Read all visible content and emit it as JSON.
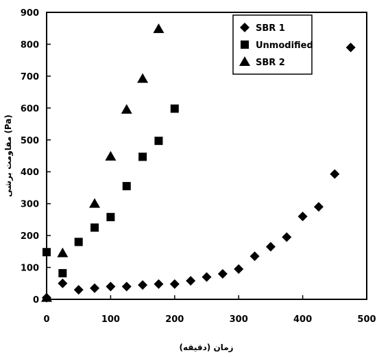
{
  "chart_data": {
    "type": "scatter",
    "xlabel": "زمان (دقیقه)",
    "ylabel": "مقاومت برشی (Pa)",
    "xlim": [
      0,
      500
    ],
    "ylim": [
      0,
      900
    ],
    "xticks": [
      "0",
      "100",
      "200",
      "300",
      "400",
      "500"
    ],
    "yticks": [
      "0",
      "100",
      "200",
      "300",
      "400",
      "500",
      "600",
      "700",
      "800",
      "900"
    ],
    "grid": false,
    "legend_position": "top-right",
    "series": [
      {
        "name": "SBR 1",
        "marker": "diamond",
        "x": [
          0,
          25,
          50,
          75,
          100,
          125,
          150,
          175,
          200,
          225,
          250,
          275,
          300,
          325,
          350,
          375,
          400,
          425,
          450,
          475
        ],
        "y": [
          5,
          50,
          30,
          35,
          40,
          40,
          45,
          48,
          48,
          58,
          70,
          80,
          95,
          135,
          165,
          195,
          260,
          290,
          393,
          790
        ]
      },
      {
        "name": "Unmodified",
        "marker": "square",
        "x": [
          0,
          25,
          50,
          75,
          100,
          125,
          150,
          175,
          200
        ],
        "y": [
          148,
          82,
          180,
          225,
          258,
          355,
          447,
          497,
          598
        ]
      },
      {
        "name": "SBR 2",
        "marker": "triangle",
        "x": [
          0,
          25,
          75,
          100,
          125,
          150,
          175
        ],
        "y": [
          5,
          145,
          300,
          448,
          595,
          692,
          848
        ]
      }
    ]
  }
}
